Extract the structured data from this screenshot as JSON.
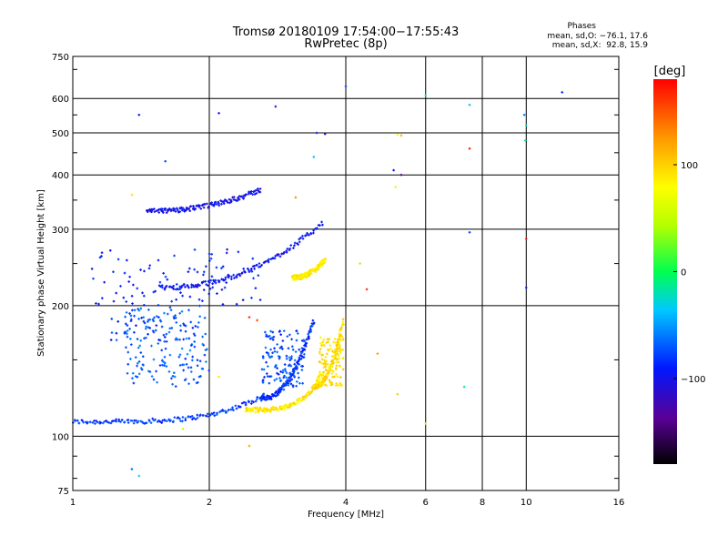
{
  "header": {
    "title_line1": "Tromsø 20180109 17:54:00−17:55:43",
    "title_line2": "RwPretec (8p)",
    "phases_label": "Phases",
    "phases_o": "mean, sd,O: −76.1, 17.6",
    "phases_x": "mean, sd,X:  92.8, 15.9"
  },
  "colorbar": {
    "unit": "[deg]",
    "ticks": [
      "100",
      "0",
      "−100"
    ],
    "tick_values": [
      100,
      0,
      -100
    ],
    "range": [
      -180,
      180
    ]
  },
  "chart_data": {
    "type": "scatter",
    "xlabel": "Frequency [MHz]",
    "ylabel": "Stationary phase Virtual Height [km]",
    "x_scale": "log",
    "y_scale": "log",
    "xlim": [
      1,
      16
    ],
    "ylim": [
      75,
      750
    ],
    "x_ticks": [
      "1",
      "2",
      "4",
      "6",
      "8",
      "10",
      "16"
    ],
    "x_tick_values": [
      1,
      2,
      4,
      6,
      8,
      10,
      16
    ],
    "y_ticks": [
      "75",
      "100",
      "200",
      "300",
      "400",
      "500",
      "600",
      "750"
    ],
    "y_tick_values": [
      75,
      100,
      200,
      300,
      400,
      500,
      600,
      750
    ],
    "grid": true,
    "traces": [
      {
        "name": "",
        "desc": "lower O-trace",
        "phase": -80,
        "x0": 1.0,
        "x1": 2.65,
        "y0": 108,
        "y1": 125,
        "curve": "flat-rise"
      },
      {
        "name": "",
        "desc": "lower O-trace riser",
        "phase": -85,
        "x0": 2.6,
        "x1": 3.4,
        "y0": 122,
        "y1": 185,
        "curve": "rise"
      },
      {
        "name": "",
        "desc": "lower X-trace",
        "phase": 90,
        "x0": 2.4,
        "x1": 3.55,
        "y0": 115,
        "y1": 140,
        "curve": "flat-rise"
      },
      {
        "name": "",
        "desc": "X-trace riser",
        "phase": 95,
        "x0": 3.4,
        "x1": 3.95,
        "y0": 130,
        "y1": 185,
        "curve": "rise"
      },
      {
        "name": "",
        "desc": "F-layer O-trace",
        "phase": -95,
        "x0": 1.55,
        "x1": 3.55,
        "y0": 220,
        "y1": 310,
        "curve": "rise"
      },
      {
        "name": "",
        "desc": "F-layer X-trace",
        "phase": 85,
        "x0": 3.05,
        "x1": 3.6,
        "y0": 232,
        "y1": 255,
        "curve": "rise"
      },
      {
        "name": "",
        "desc": "upper trace",
        "phase": -100,
        "x0": 1.45,
        "x1": 2.6,
        "y0": 330,
        "y1": 370,
        "curve": "rise"
      }
    ],
    "clusters": [
      {
        "phase": -70,
        "xmin": 1.3,
        "xmax": 2.0,
        "ymin": 130,
        "ymax": 200,
        "count": 150
      },
      {
        "phase": -75,
        "xmin": 2.6,
        "xmax": 3.25,
        "ymin": 130,
        "ymax": 175,
        "count": 130
      },
      {
        "phase": -90,
        "xmin": 1.1,
        "xmax": 2.6,
        "ymin": 200,
        "ymax": 270,
        "count": 90
      },
      {
        "phase": 95,
        "xmin": 3.5,
        "xmax": 3.95,
        "ymin": 130,
        "ymax": 170,
        "count": 120
      },
      {
        "phase": -80,
        "xmin": 1.2,
        "xmax": 1.9,
        "ymin": 165,
        "ymax": 190,
        "count": 50
      }
    ],
    "points": [
      {
        "x": 4.0,
        "y": 640,
        "phase": -80
      },
      {
        "x": 6.0,
        "y": 610,
        "phase": -20
      },
      {
        "x": 7.5,
        "y": 580,
        "phase": -40
      },
      {
        "x": 12.0,
        "y": 620,
        "phase": -110
      },
      {
        "x": 9.9,
        "y": 550,
        "phase": -60
      },
      {
        "x": 10.0,
        "y": 520,
        "phase": -40
      },
      {
        "x": 9.95,
        "y": 480,
        "phase": -30
      },
      {
        "x": 1.4,
        "y": 550,
        "phase": -90
      },
      {
        "x": 2.1,
        "y": 555,
        "phase": -110
      },
      {
        "x": 2.8,
        "y": 575,
        "phase": -130
      },
      {
        "x": 3.45,
        "y": 500,
        "phase": -100
      },
      {
        "x": 3.6,
        "y": 497,
        "phase": -90
      },
      {
        "x": 5.2,
        "y": 495,
        "phase": 90
      },
      {
        "x": 5.3,
        "y": 493,
        "phase": 110
      },
      {
        "x": 7.5,
        "y": 460,
        "phase": 160
      },
      {
        "x": 5.1,
        "y": 410,
        "phase": -110
      },
      {
        "x": 5.3,
        "y": 400,
        "phase": -130
      },
      {
        "x": 3.4,
        "y": 440,
        "phase": -40
      },
      {
        "x": 1.6,
        "y": 430,
        "phase": -60
      },
      {
        "x": 5.15,
        "y": 375,
        "phase": 60
      },
      {
        "x": 3.1,
        "y": 355,
        "phase": 130
      },
      {
        "x": 7.5,
        "y": 295,
        "phase": -70
      },
      {
        "x": 10.0,
        "y": 285,
        "phase": 170
      },
      {
        "x": 4.3,
        "y": 250,
        "phase": 50
      },
      {
        "x": 10.0,
        "y": 220,
        "phase": -100
      },
      {
        "x": 4.45,
        "y": 218,
        "phase": 180
      },
      {
        "x": 4.7,
        "y": 155,
        "phase": 130
      },
      {
        "x": 7.3,
        "y": 130,
        "phase": -20
      },
      {
        "x": 5.2,
        "y": 125,
        "phase": 90
      },
      {
        "x": 6.0,
        "y": 107,
        "phase": 60
      },
      {
        "x": 1.75,
        "y": 104,
        "phase": 60
      },
      {
        "x": 2.45,
        "y": 95,
        "phase": 130
      },
      {
        "x": 1.35,
        "y": 84,
        "phase": -50
      },
      {
        "x": 1.4,
        "y": 81,
        "phase": -30
      },
      {
        "x": 2.55,
        "y": 185,
        "phase": 140
      },
      {
        "x": 2.45,
        "y": 188,
        "phase": 160
      },
      {
        "x": 1.35,
        "y": 360,
        "phase": 80
      },
      {
        "x": 2.1,
        "y": 137,
        "phase": 100
      }
    ]
  }
}
